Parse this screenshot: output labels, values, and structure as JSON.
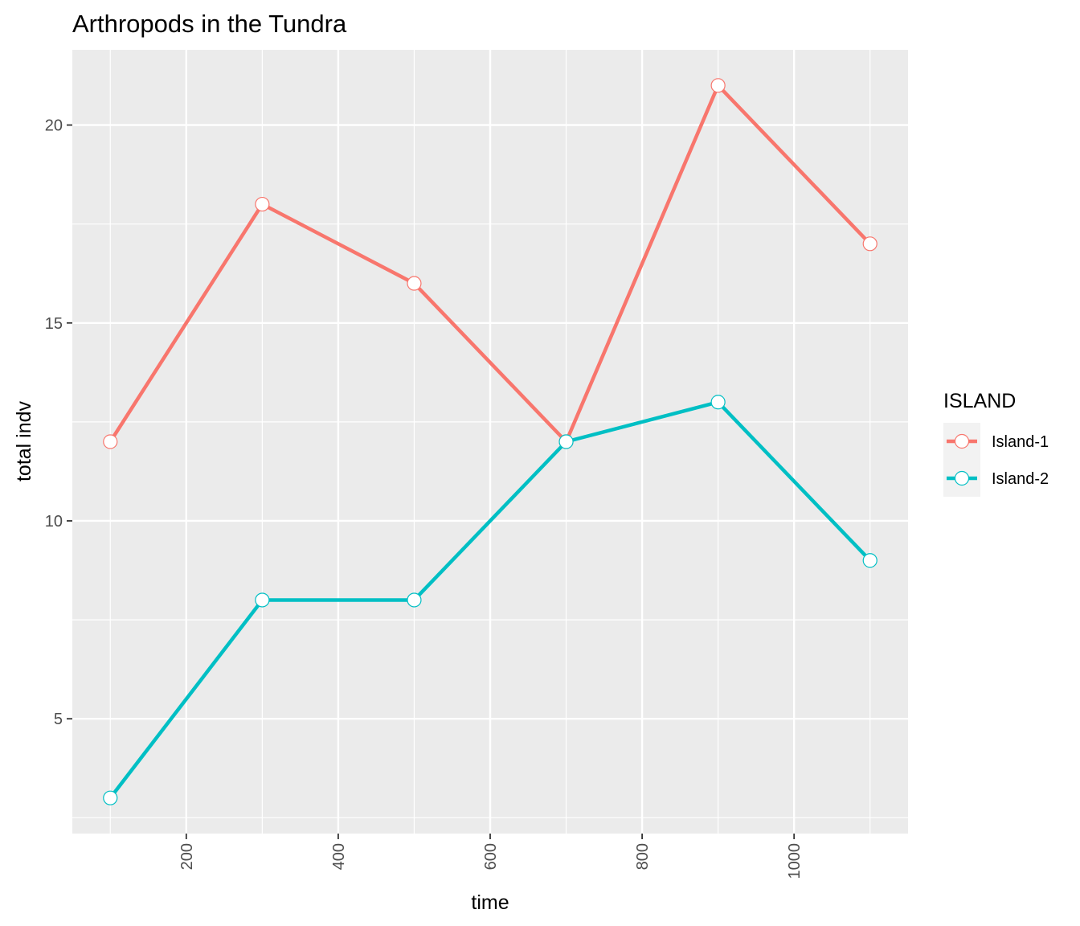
{
  "chart_data": {
    "type": "line",
    "title": "Arthropods in the Tundra",
    "xlabel": "time",
    "ylabel": "total indv",
    "x": [
      100,
      300,
      500,
      700,
      900,
      1100
    ],
    "xlim": [
      50,
      1150
    ],
    "ylim": [
      2.1,
      21.9
    ],
    "x_ticks": [
      200,
      400,
      600,
      800,
      1000
    ],
    "x_tick_labels": [
      "200",
      "400",
      "600",
      "800",
      "1000"
    ],
    "y_ticks": [
      5,
      10,
      15,
      20
    ],
    "y_tick_labels": [
      "5",
      "10",
      "15",
      "20"
    ],
    "series": [
      {
        "name": "Island-1",
        "color": "#F8766D",
        "values": [
          12,
          18,
          16,
          12,
          21,
          17
        ]
      },
      {
        "name": "Island-2",
        "color": "#00BFC4",
        "values": [
          3,
          8,
          8,
          12,
          13,
          9
        ]
      }
    ],
    "legend": {
      "title": "ISLAND",
      "position": "right"
    },
    "grid": true,
    "background": "#EBEBEB",
    "x_tick_label_rotation": "vertical",
    "markers": "open circles with white fill"
  }
}
